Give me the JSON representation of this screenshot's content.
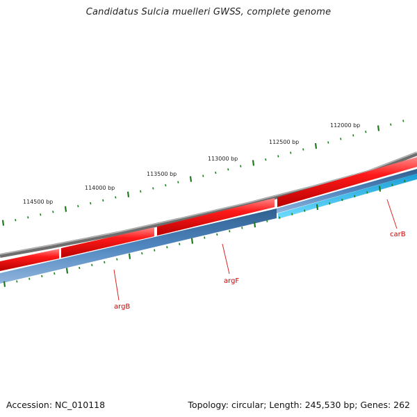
{
  "title": "Candidatus Sulcia muelleri GWSS, complete genome",
  "footer": {
    "accession": "Accession: NC_010118",
    "summary": "Topology: circular; Length: 245,530 bp; Genes: 262"
  },
  "colors": {
    "backbone": "#808080",
    "forward_gene": "#ee1111",
    "reverse_gene": "#4a7fb5",
    "reverse_gene_light": "#27bff0",
    "ticks": "#1d7a1d",
    "gene_label": "#cc0000"
  },
  "ruler": {
    "labels": [
      "114500 bp",
      "114000 bp",
      "113500 bp",
      "113000 bp",
      "112500 bp",
      "112000 bp"
    ]
  },
  "genes": [
    {
      "name": "argB",
      "strand": "reverse"
    },
    {
      "name": "argF",
      "strand": "reverse"
    },
    {
      "name": "carB",
      "strand": "reverse"
    }
  ]
}
